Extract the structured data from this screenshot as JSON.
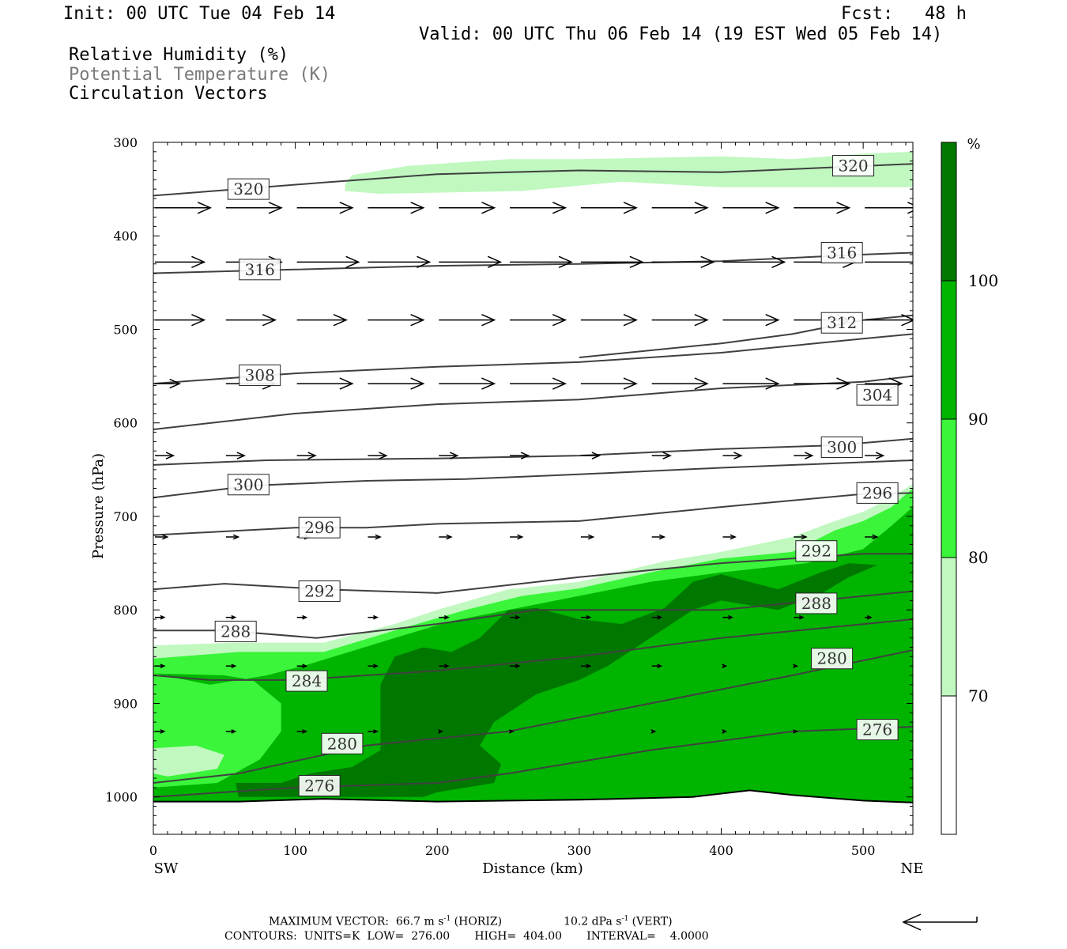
{
  "header": {
    "init": "Init: 00 UTC Tue 04 Feb 14",
    "fcst": "Fcst:   48 h",
    "valid": "Valid: 00 UTC Thu 06 Feb 14 (19 EST Wed 05 Feb 14)",
    "field1": "Relative Humidity (%)",
    "field2": "Potential Temperature (K)",
    "field3": "Circulation Vectors"
  },
  "footer": {
    "max_vector": "MAXIMUM VECTOR:  66.7 m s",
    "max_vector_exp": "-1",
    "max_vector_horiz": " (HORIZ)",
    "max_vector_vert_val": "10.2 dPa s",
    "max_vector_vert_exp": "-1",
    "max_vector_vert": " (VERT)",
    "contours": "CONTOURS:  UNITS=K  LOW=  276.00       HIGH=  404.00       INTERVAL=    4.0000"
  },
  "colors": {
    "rh70": "#c0f8c0",
    "rh80": "#3af53a",
    "rh90": "#00b400",
    "rh100": "#007800",
    "theta": "#404040"
  },
  "chart_data": {
    "type": "contour",
    "xlabel": "Distance (km)",
    "ylabel": "Pressure (hPa)",
    "xlim": [
      0,
      535
    ],
    "ylim": [
      1040,
      300
    ],
    "x_ticks": [
      0,
      100,
      200,
      300,
      400,
      500
    ],
    "y_ticks": [
      300,
      400,
      500,
      600,
      700,
      800,
      900,
      1000
    ],
    "left_end_label": "SW",
    "right_end_label": "NE",
    "colorbar": {
      "unit": "%",
      "levels": [
        70,
        80,
        90,
        100
      ]
    },
    "theta_contours": [
      {
        "value": 320,
        "pts": [
          [
            0,
            357
          ],
          [
            60,
            350
          ],
          [
            120,
            343
          ],
          [
            200,
            334
          ],
          [
            300,
            330
          ],
          [
            400,
            332
          ],
          [
            535,
            323
          ]
        ],
        "labels": [
          [
            67,
            350
          ],
          [
            493,
            325
          ]
        ]
      },
      {
        "value": 316,
        "pts": [
          [
            0,
            440
          ],
          [
            100,
            436
          ],
          [
            200,
            432
          ],
          [
            300,
            430
          ],
          [
            400,
            427
          ],
          [
            500,
            420
          ],
          [
            535,
            418
          ]
        ],
        "labels": [
          [
            75,
            436
          ],
          [
            485,
            418
          ]
        ]
      },
      {
        "value": 312,
        "pts": [
          [
            300,
            530
          ],
          [
            400,
            515
          ],
          [
            450,
            505
          ],
          [
            500,
            490
          ],
          [
            535,
            485
          ]
        ],
        "labels": [
          [
            485,
            493
          ]
        ]
      },
      {
        "value": 308,
        "pts": [
          [
            0,
            558
          ],
          [
            100,
            547
          ],
          [
            200,
            540
          ],
          [
            300,
            535
          ],
          [
            400,
            525
          ],
          [
            500,
            510
          ],
          [
            535,
            505
          ]
        ],
        "labels": [
          [
            75,
            549
          ]
        ]
      },
      {
        "value": 304,
        "pts": [
          [
            0,
            607
          ],
          [
            100,
            590
          ],
          [
            200,
            580
          ],
          [
            300,
            575
          ],
          [
            400,
            563
          ],
          [
            500,
            556
          ],
          [
            535,
            550
          ]
        ],
        "labels": [
          [
            510,
            570
          ]
        ]
      },
      {
        "value": 300,
        "pts": [
          [
            0,
            645
          ],
          [
            80,
            640
          ],
          [
            200,
            638
          ],
          [
            300,
            635
          ],
          [
            400,
            628
          ],
          [
            480,
            624
          ],
          [
            535,
            617
          ]
        ],
        "labels": [
          [
            485,
            626
          ]
        ]
      },
      {
        "value": 300,
        "pts": [
          [
            0,
            680
          ],
          [
            70,
            667
          ],
          [
            150,
            662
          ],
          [
            220,
            660
          ],
          [
            300,
            655
          ],
          [
            400,
            648
          ],
          [
            535,
            640
          ]
        ],
        "labels": [
          [
            67,
            666
          ]
        ]
      },
      {
        "value": 296,
        "pts": [
          [
            0,
            720
          ],
          [
            100,
            712
          ],
          [
            150,
            712
          ],
          [
            200,
            708
          ],
          [
            300,
            705
          ],
          [
            400,
            690
          ],
          [
            500,
            676
          ],
          [
            535,
            675
          ]
        ],
        "labels": [
          [
            117,
            712
          ],
          [
            510,
            675
          ]
        ]
      },
      {
        "value": 292,
        "pts": [
          [
            0,
            778
          ],
          [
            50,
            772
          ],
          [
            120,
            778
          ],
          [
            200,
            782
          ],
          [
            300,
            765
          ],
          [
            400,
            750
          ],
          [
            500,
            740
          ],
          [
            535,
            740
          ]
        ],
        "labels": [
          [
            117,
            780
          ],
          [
            467,
            737
          ]
        ]
      },
      {
        "value": 288,
        "pts": [
          [
            0,
            822
          ],
          [
            50,
            822
          ],
          [
            115,
            830
          ],
          [
            200,
            815
          ],
          [
            270,
            800
          ],
          [
            400,
            800
          ],
          [
            535,
            780
          ]
        ],
        "labels": [
          [
            58,
            823
          ],
          [
            467,
            793
          ]
        ]
      },
      {
        "value": 284,
        "pts": [
          [
            0,
            870
          ],
          [
            40,
            875
          ],
          [
            100,
            875
          ],
          [
            200,
            865
          ],
          [
            300,
            850
          ],
          [
            400,
            830
          ],
          [
            535,
            810
          ]
        ],
        "labels": [
          [
            108,
            876
          ]
        ]
      },
      {
        "value": 280,
        "pts": [
          [
            0,
            985
          ],
          [
            60,
            975
          ],
          [
            150,
            945
          ],
          [
            250,
            930
          ],
          [
            350,
            900
          ],
          [
            450,
            870
          ],
          [
            535,
            843
          ]
        ],
        "labels": [
          [
            133,
            943
          ],
          [
            478,
            852
          ]
        ]
      },
      {
        "value": 276,
        "pts": [
          [
            0,
            1000
          ],
          [
            100,
            990
          ],
          [
            200,
            985
          ],
          [
            250,
            975
          ],
          [
            350,
            950
          ],
          [
            450,
            930
          ],
          [
            535,
            925
          ]
        ],
        "labels": [
          [
            117,
            988
          ],
          [
            510,
            928
          ]
        ]
      }
    ],
    "circulation_vectors": {
      "rows_hPa": [
        370,
        428,
        490,
        558,
        635,
        722,
        808,
        860,
        930
      ],
      "columns_km": [
        0,
        50,
        100,
        150,
        200,
        250,
        300,
        350,
        400,
        450,
        500
      ],
      "note_units": "relative length",
      "lengths": [
        [
          0.9,
          0.9,
          0.9,
          0.9,
          0.9,
          0.9,
          0.9,
          0.9,
          0.9,
          0.9,
          0.9
        ],
        [
          0.8,
          0.9,
          1.0,
          1.0,
          1.0,
          1.0,
          1.0,
          1.0,
          1.0,
          1.0,
          1.0
        ],
        [
          0.8,
          0.8,
          0.8,
          0.9,
          0.9,
          0.9,
          0.9,
          0.9,
          0.9,
          0.9,
          0.8
        ],
        [
          0.4,
          0.8,
          0.9,
          0.9,
          0.9,
          0.9,
          0.9,
          0.9,
          0.9,
          0.9,
          0.6
        ],
        [
          0.3,
          0.3,
          0.3,
          0.3,
          0.3,
          0.3,
          0.3,
          0.3,
          0.3,
          0.3,
          0.3
        ],
        [
          0.2,
          0.2,
          0.2,
          0.2,
          0.2,
          0.2,
          0.2,
          0.2,
          0.2,
          0.2,
          0.2
        ],
        [
          0.15,
          0.15,
          0.15,
          0.15,
          0.15,
          0.15,
          0.15,
          0.15,
          0.15,
          0.15,
          0.1
        ],
        [
          0.15,
          0.15,
          0.15,
          0.15,
          0.15,
          0.15,
          0.15,
          0.15,
          0.05,
          0.05,
          0.0
        ],
        [
          0.15,
          0.15,
          0.15,
          0.15,
          0.05,
          0.05,
          0.0,
          0.05,
          0.05,
          0.05,
          0.0
        ]
      ]
    }
  }
}
